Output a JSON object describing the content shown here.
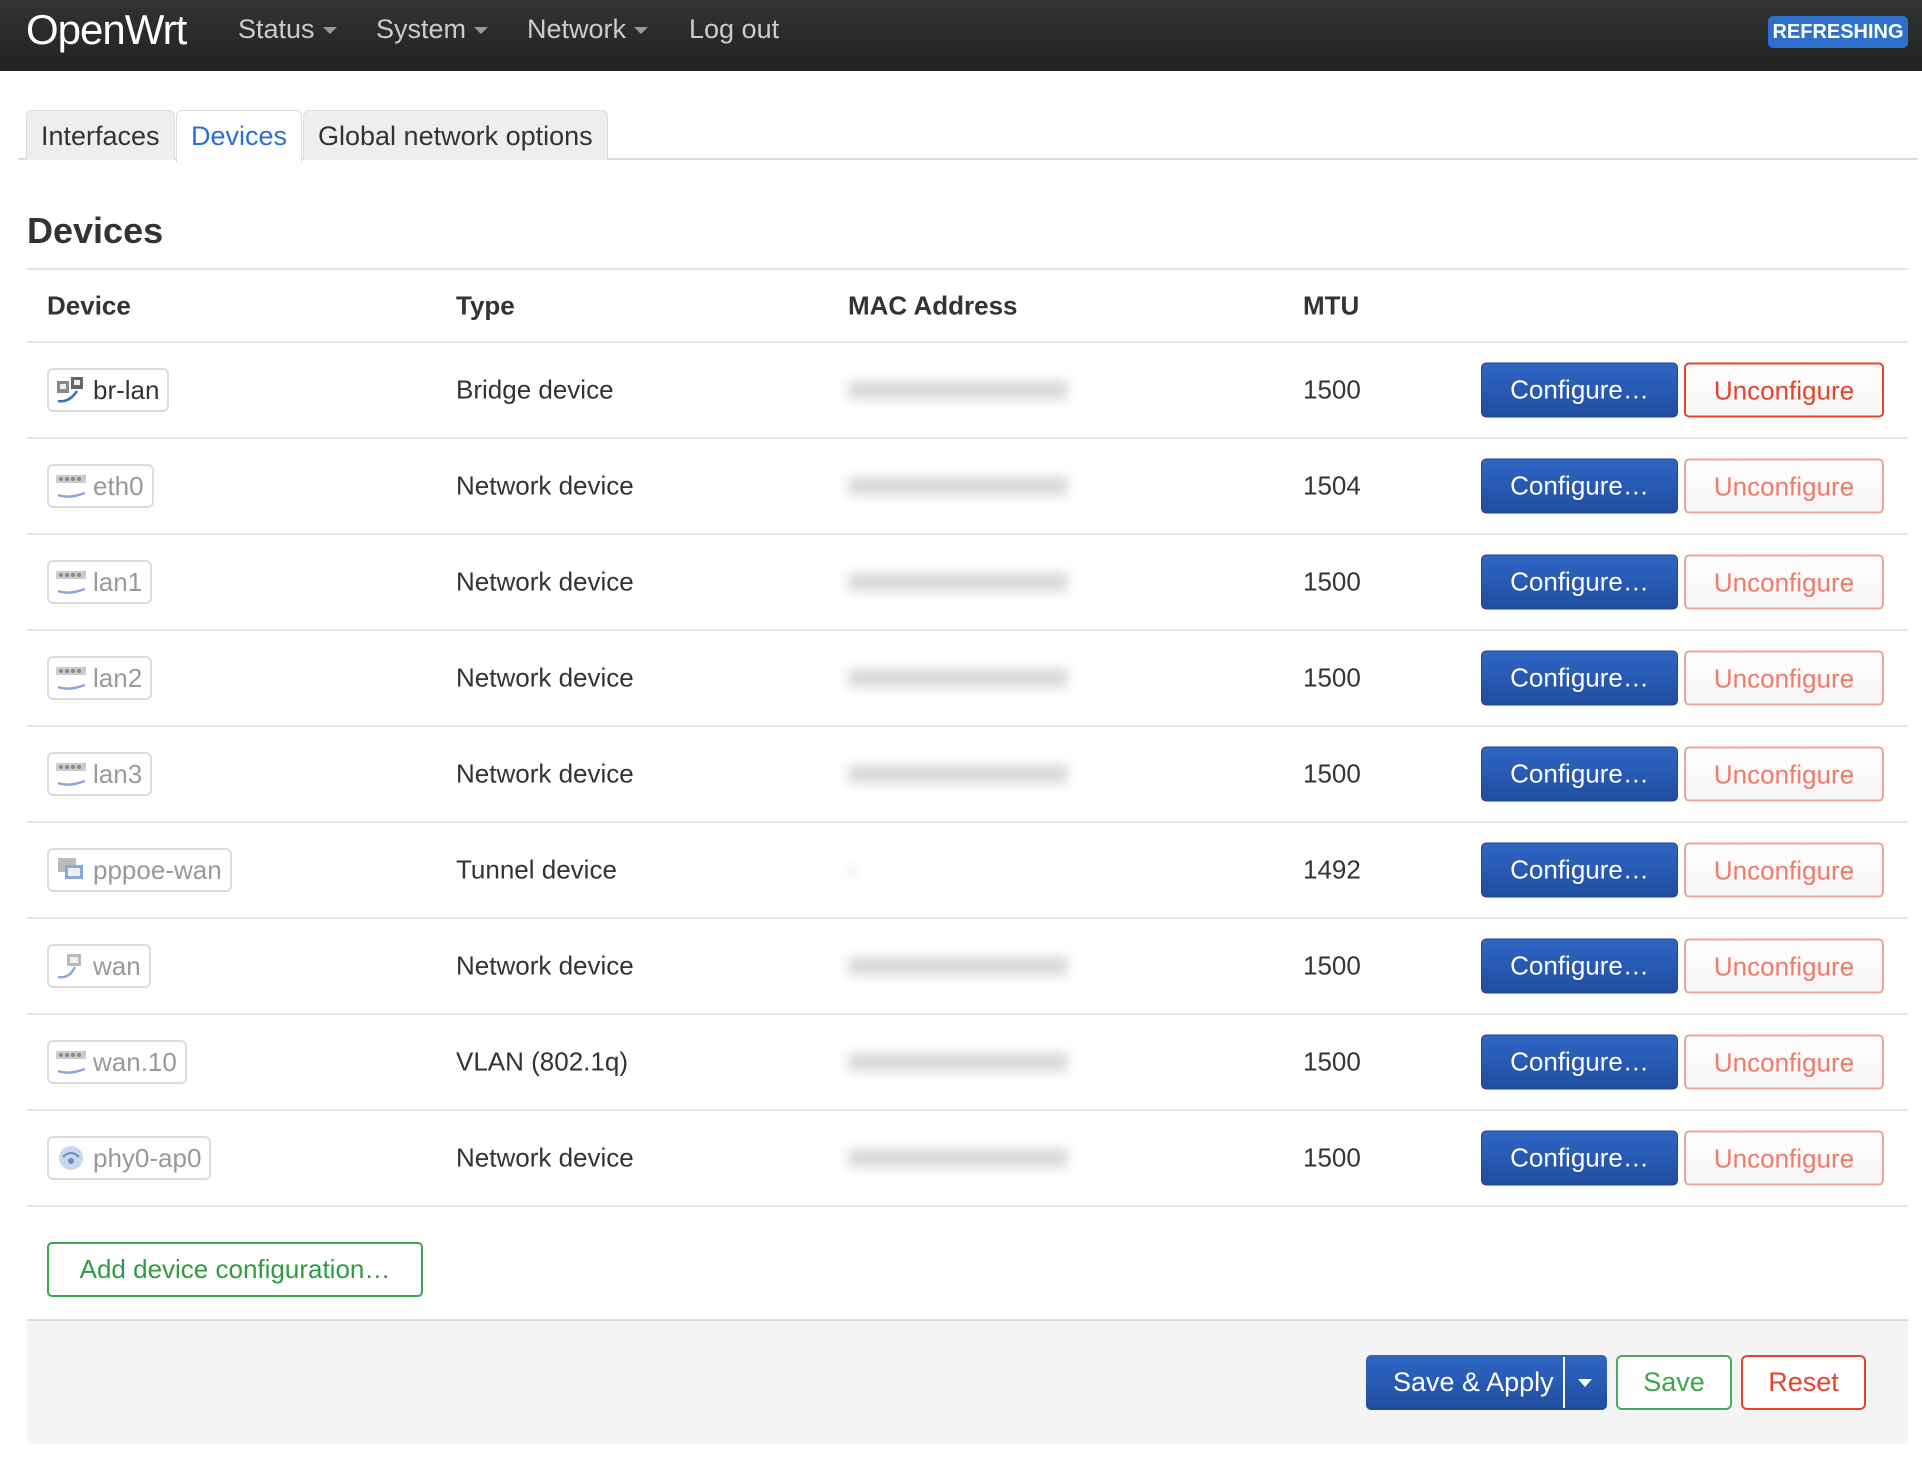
{
  "header": {
    "brand": "OpenWrt",
    "menu": [
      {
        "label": "Status"
      },
      {
        "label": "System"
      },
      {
        "label": "Network"
      },
      {
        "label": "Log out"
      }
    ],
    "badge": "REFRESHING"
  },
  "tabs": [
    {
      "label": "Interfaces"
    },
    {
      "label": "Devices",
      "active": true
    },
    {
      "label": "Global network options"
    }
  ],
  "section": {
    "title": "Devices"
  },
  "table": {
    "columns": [
      "Device",
      "Type",
      "MAC Address",
      "MTU"
    ],
    "rows": [
      {
        "device": "br-lan",
        "icon": "bridge-icon",
        "type": "Bridge device",
        "mtu": "1500"
      },
      {
        "device": "eth0",
        "icon": "ethernet-icon",
        "type": "Network device",
        "mtu": "1504"
      },
      {
        "device": "lan1",
        "icon": "ethernet-icon",
        "type": "Network device",
        "mtu": "1500"
      },
      {
        "device": "lan2",
        "icon": "ethernet-icon",
        "type": "Network device",
        "mtu": "1500"
      },
      {
        "device": "lan3",
        "icon": "ethernet-icon",
        "type": "Network device",
        "mtu": "1500"
      },
      {
        "device": "pppoe-wan",
        "icon": "tunnel-icon",
        "type": "Tunnel device",
        "mtu": "1492"
      },
      {
        "device": "wan",
        "icon": "port-icon",
        "type": "Network device",
        "mtu": "1500"
      },
      {
        "device": "wan.10",
        "icon": "ethernet-icon",
        "type": "VLAN (802.1q)",
        "mtu": "1500"
      },
      {
        "device": "phy0-ap0",
        "icon": "wifi-icon",
        "type": "Network device",
        "mtu": "1500"
      }
    ],
    "configure_label": "Configure…",
    "unconfigure_label": "Unconfigure"
  },
  "add_label": "Add device configuration…",
  "footer": {
    "save_apply": "Save & Apply",
    "save": "Save",
    "reset": "Reset"
  },
  "colors": {
    "primary": "#2459b5",
    "success": "#3ea54c",
    "danger": "#e8412c",
    "badge": "#2d6fcc"
  }
}
